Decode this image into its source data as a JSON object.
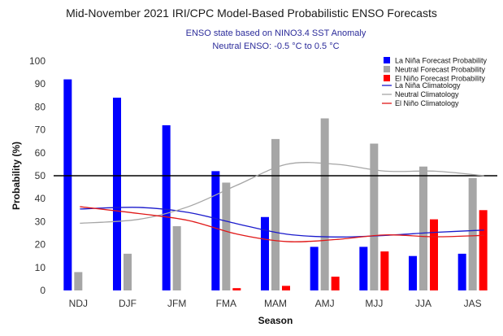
{
  "chart_data": {
    "type": "bar",
    "title": "Mid-November 2021 IRI/CPC Model-Based Probabilistic ENSO Forecasts",
    "subtitle_lines": [
      "ENSO state based on NINO3.4 SST Anomaly",
      "Neutral ENSO: -0.5 °C to 0.5 °C"
    ],
    "xlabel": "Season",
    "ylabel": "Probability (%)",
    "ylim": [
      0,
      100
    ],
    "yticks": [
      0,
      10,
      20,
      30,
      40,
      50,
      60,
      70,
      80,
      90,
      100
    ],
    "reference_line": 50,
    "categories": [
      "NDJ",
      "DJF",
      "JFM",
      "FMA",
      "MAM",
      "AMJ",
      "MJJ",
      "JJA",
      "JAS"
    ],
    "series": [
      {
        "name": "La Niña Forecast Probability",
        "color": "#0000ff",
        "values": [
          92,
          84,
          72,
          52,
          32,
          19,
          19,
          15,
          16
        ]
      },
      {
        "name": "Neutral Forecast Probability",
        "color": "#a6a6a6",
        "values": [
          8,
          16,
          28,
          47,
          66,
          75,
          64,
          54,
          49
        ]
      },
      {
        "name": "El Niño Forecast Probability",
        "color": "#ff0000",
        "values": [
          0,
          0,
          0,
          1,
          2,
          6,
          17,
          31,
          35
        ]
      }
    ],
    "climatology": [
      {
        "name": "La Niña Climatology",
        "color": "#1a1acc",
        "values": [
          35.5,
          36.2,
          34,
          29,
          24.5,
          23.3,
          24,
          25.3,
          26.3
        ]
      },
      {
        "name": "Neutral Climatology",
        "color": "#a6a6a6",
        "values": [
          29.3,
          31,
          36.5,
          46,
          55,
          55,
          52,
          52,
          50
        ]
      },
      {
        "name": "El Niño Climatology",
        "color": "#e01818",
        "values": [
          36.5,
          33.5,
          30.5,
          24.5,
          21.3,
          22.2,
          24.2,
          23.4,
          24
        ]
      }
    ],
    "legend_placement": "top-right",
    "grid": false
  }
}
